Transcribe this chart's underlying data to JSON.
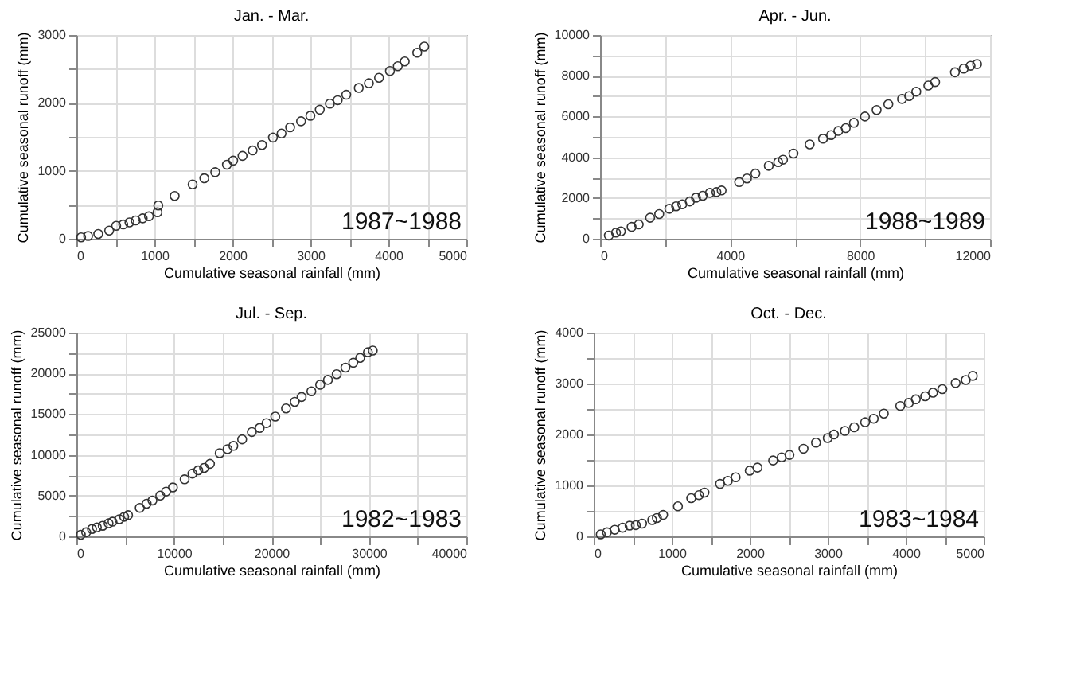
{
  "chart_data": [
    {
      "type": "scatter",
      "title": "Jan. - Mar.",
      "xlabel": "Cumulative seasonal rainfall (mm)",
      "ylabel": "Cumulative seasonal runoff (mm)",
      "annotations": [
        "1987~1988"
      ],
      "marker": "circle",
      "grid": true,
      "legend": false,
      "xlim": [
        0,
        5000
      ],
      "ylim": [
        0,
        3000
      ],
      "xticks": [
        0,
        {
          "value": 500,
          "label": null
        },
        1000,
        {
          "value": 1500,
          "label": null
        },
        2000,
        {
          "value": 2500,
          "label": null
        },
        3000,
        {
          "value": 3500,
          "label": null
        },
        4000,
        {
          "value": 4500,
          "label": null
        },
        5000
      ],
      "yticks": [
        0,
        {
          "value": 500,
          "label": null
        },
        1000,
        {
          "value": 1500,
          "label": null
        },
        2000,
        {
          "value": 2500,
          "label": null
        },
        3000
      ],
      "series": [
        {
          "color": "#333333",
          "x": [
            60,
            150,
            280,
            420,
            510,
            600,
            680,
            760,
            850,
            930,
            1040,
            1050,
            1260,
            1490,
            1640,
            1780,
            1930,
            2010,
            2130,
            2260,
            2380,
            2520,
            2630,
            2740,
            2880,
            3000,
            3120,
            3250,
            3350,
            3460,
            3620,
            3750,
            3880,
            4020,
            4120,
            4210,
            4370,
            4460
          ],
          "values": [
            20,
            40,
            70,
            120,
            190,
            210,
            240,
            270,
            300,
            330,
            390,
            490,
            630,
            800,
            890,
            980,
            1090,
            1150,
            1220,
            1300,
            1380,
            1490,
            1550,
            1640,
            1730,
            1810,
            1900,
            1990,
            2040,
            2120,
            2220,
            2290,
            2370,
            2470,
            2540,
            2610,
            2740,
            2830
          ]
        }
      ]
    },
    {
      "type": "scatter",
      "title": "Apr. - Jun.",
      "xlabel": "Cumulative seasonal rainfall (mm)",
      "ylabel": "Cumulative seasonal runoff (mm)",
      "annotations": [
        "1988~1989"
      ],
      "marker": "circle",
      "grid": true,
      "legend": false,
      "xlim": [
        0,
        12000
      ],
      "ylim": [
        0,
        10000
      ],
      "xticks": [
        0,
        {
          "value": 2000,
          "label": null
        },
        4000,
        {
          "value": 6000,
          "label": null
        },
        8000,
        {
          "value": 10000,
          "label": null
        },
        12000
      ],
      "yticks": [
        0,
        {
          "value": 1000,
          "label": null
        },
        2000,
        {
          "value": 3000,
          "label": null
        },
        4000,
        {
          "value": 5000,
          "label": null
        },
        6000,
        {
          "value": 7000,
          "label": null
        },
        8000,
        {
          "value": 9000,
          "label": null
        },
        10000
      ],
      "series": [
        {
          "color": "#333333",
          "x": [
            270,
            490,
            640,
            970,
            1190,
            1540,
            1820,
            2130,
            2340,
            2530,
            2760,
            2950,
            3160,
            3380,
            3580,
            3740,
            4280,
            4520,
            4780,
            5190,
            5480,
            5630,
            5950,
            6450,
            6860,
            7110,
            7330,
            7560,
            7810,
            8150,
            8510,
            8870,
            9290,
            9510,
            9730,
            10100,
            10310,
            10920,
            11190,
            11400,
            11600
          ],
          "values": [
            160,
            300,
            360,
            580,
            700,
            1030,
            1210,
            1470,
            1590,
            1690,
            1830,
            2010,
            2110,
            2250,
            2290,
            2370,
            2780,
            2960,
            3200,
            3580,
            3760,
            3880,
            4180,
            4630,
            4910,
            5090,
            5290,
            5430,
            5690,
            6000,
            6320,
            6600,
            6860,
            7000,
            7220,
            7520,
            7690,
            8170,
            8350,
            8490,
            8570
          ]
        }
      ]
    },
    {
      "type": "scatter",
      "title": "Jul. - Sep.",
      "xlabel": "Cumulative seasonal rainfall (mm)",
      "ylabel": "Cumulative seasonal runoff (mm)",
      "annotations": [
        "1982~1983"
      ],
      "marker": "circle",
      "grid": true,
      "legend": false,
      "xlim": [
        0,
        40000
      ],
      "ylim": [
        0,
        25000
      ],
      "xticks": [
        0,
        {
          "value": 5000,
          "label": null
        },
        10000,
        {
          "value": 15000,
          "label": null
        },
        20000,
        {
          "value": 25000,
          "label": null
        },
        30000,
        {
          "value": 35000,
          "label": null
        },
        40000
      ],
      "yticks": [
        0,
        {
          "value": 2500,
          "label": null
        },
        5000,
        {
          "value": 7500,
          "label": null
        },
        10000,
        {
          "value": 12500,
          "label": null
        },
        15000,
        {
          "value": 17500,
          "label": null
        },
        20000,
        {
          "value": 22500,
          "label": null
        },
        25000
      ],
      "series": [
        {
          "color": "#333333",
          "x": [
            450,
            1000,
            1600,
            2100,
            2700,
            3300,
            3700,
            4400,
            4900,
            5300,
            6500,
            7200,
            7800,
            8600,
            9200,
            9900,
            11100,
            11900,
            12500,
            13100,
            13700,
            14700,
            15500,
            16100,
            17000,
            18000,
            18800,
            19500,
            20400,
            21500,
            22400,
            23100,
            24100,
            25000,
            25800,
            26700,
            27600,
            28400,
            29100,
            29900,
            30400
          ],
          "values": [
            200,
            500,
            900,
            1100,
            1300,
            1600,
            1800,
            2100,
            2400,
            2600,
            3500,
            4000,
            4400,
            5000,
            5500,
            6000,
            7000,
            7700,
            8100,
            8400,
            8900,
            10200,
            10700,
            11100,
            11900,
            12800,
            13300,
            13900,
            14700,
            15700,
            16500,
            17100,
            17800,
            18600,
            19200,
            19900,
            20700,
            21300,
            21900,
            22600,
            22800
          ]
        }
      ]
    },
    {
      "type": "scatter",
      "title": "Oct. - Dec.",
      "xlabel": "Cumulative seasonal rainfall (mm)",
      "ylabel": "Cumulative seasonal runoff (mm)",
      "annotations": [
        "1983~1984"
      ],
      "marker": "circle",
      "grid": true,
      "legend": false,
      "xlim": [
        0,
        5000
      ],
      "ylim": [
        0,
        4000
      ],
      "xticks": [
        0,
        {
          "value": 500,
          "label": null
        },
        1000,
        {
          "value": 1500,
          "label": null
        },
        2000,
        {
          "value": 2500,
          "label": null
        },
        3000,
        {
          "value": 3500,
          "label": null
        },
        4000,
        {
          "value": 4500,
          "label": null
        },
        5000
      ],
      "yticks": [
        0,
        {
          "value": 500,
          "label": null
        },
        1000,
        {
          "value": 1500,
          "label": null
        },
        2000,
        {
          "value": 2500,
          "label": null
        },
        3000,
        {
          "value": 3500,
          "label": null
        },
        4000
      ],
      "series": [
        {
          "color": "#333333",
          "x": [
            90,
            170,
            270,
            370,
            460,
            540,
            620,
            750,
            810,
            890,
            1080,
            1250,
            1350,
            1420,
            1620,
            1720,
            1820,
            2000,
            2100,
            2300,
            2410,
            2510,
            2690,
            2850,
            3000,
            3080,
            3220,
            3340,
            3480,
            3590,
            3720,
            3930,
            4040,
            4130,
            4250,
            4350,
            4470,
            4640,
            4770,
            4860
          ],
          "values": [
            40,
            80,
            130,
            170,
            210,
            220,
            250,
            320,
            360,
            420,
            590,
            750,
            810,
            860,
            1030,
            1090,
            1160,
            1290,
            1350,
            1490,
            1550,
            1600,
            1720,
            1840,
            1930,
            2000,
            2070,
            2140,
            2240,
            2310,
            2410,
            2560,
            2620,
            2690,
            2750,
            2820,
            2890,
            3010,
            3070,
            3150
          ]
        }
      ]
    }
  ]
}
